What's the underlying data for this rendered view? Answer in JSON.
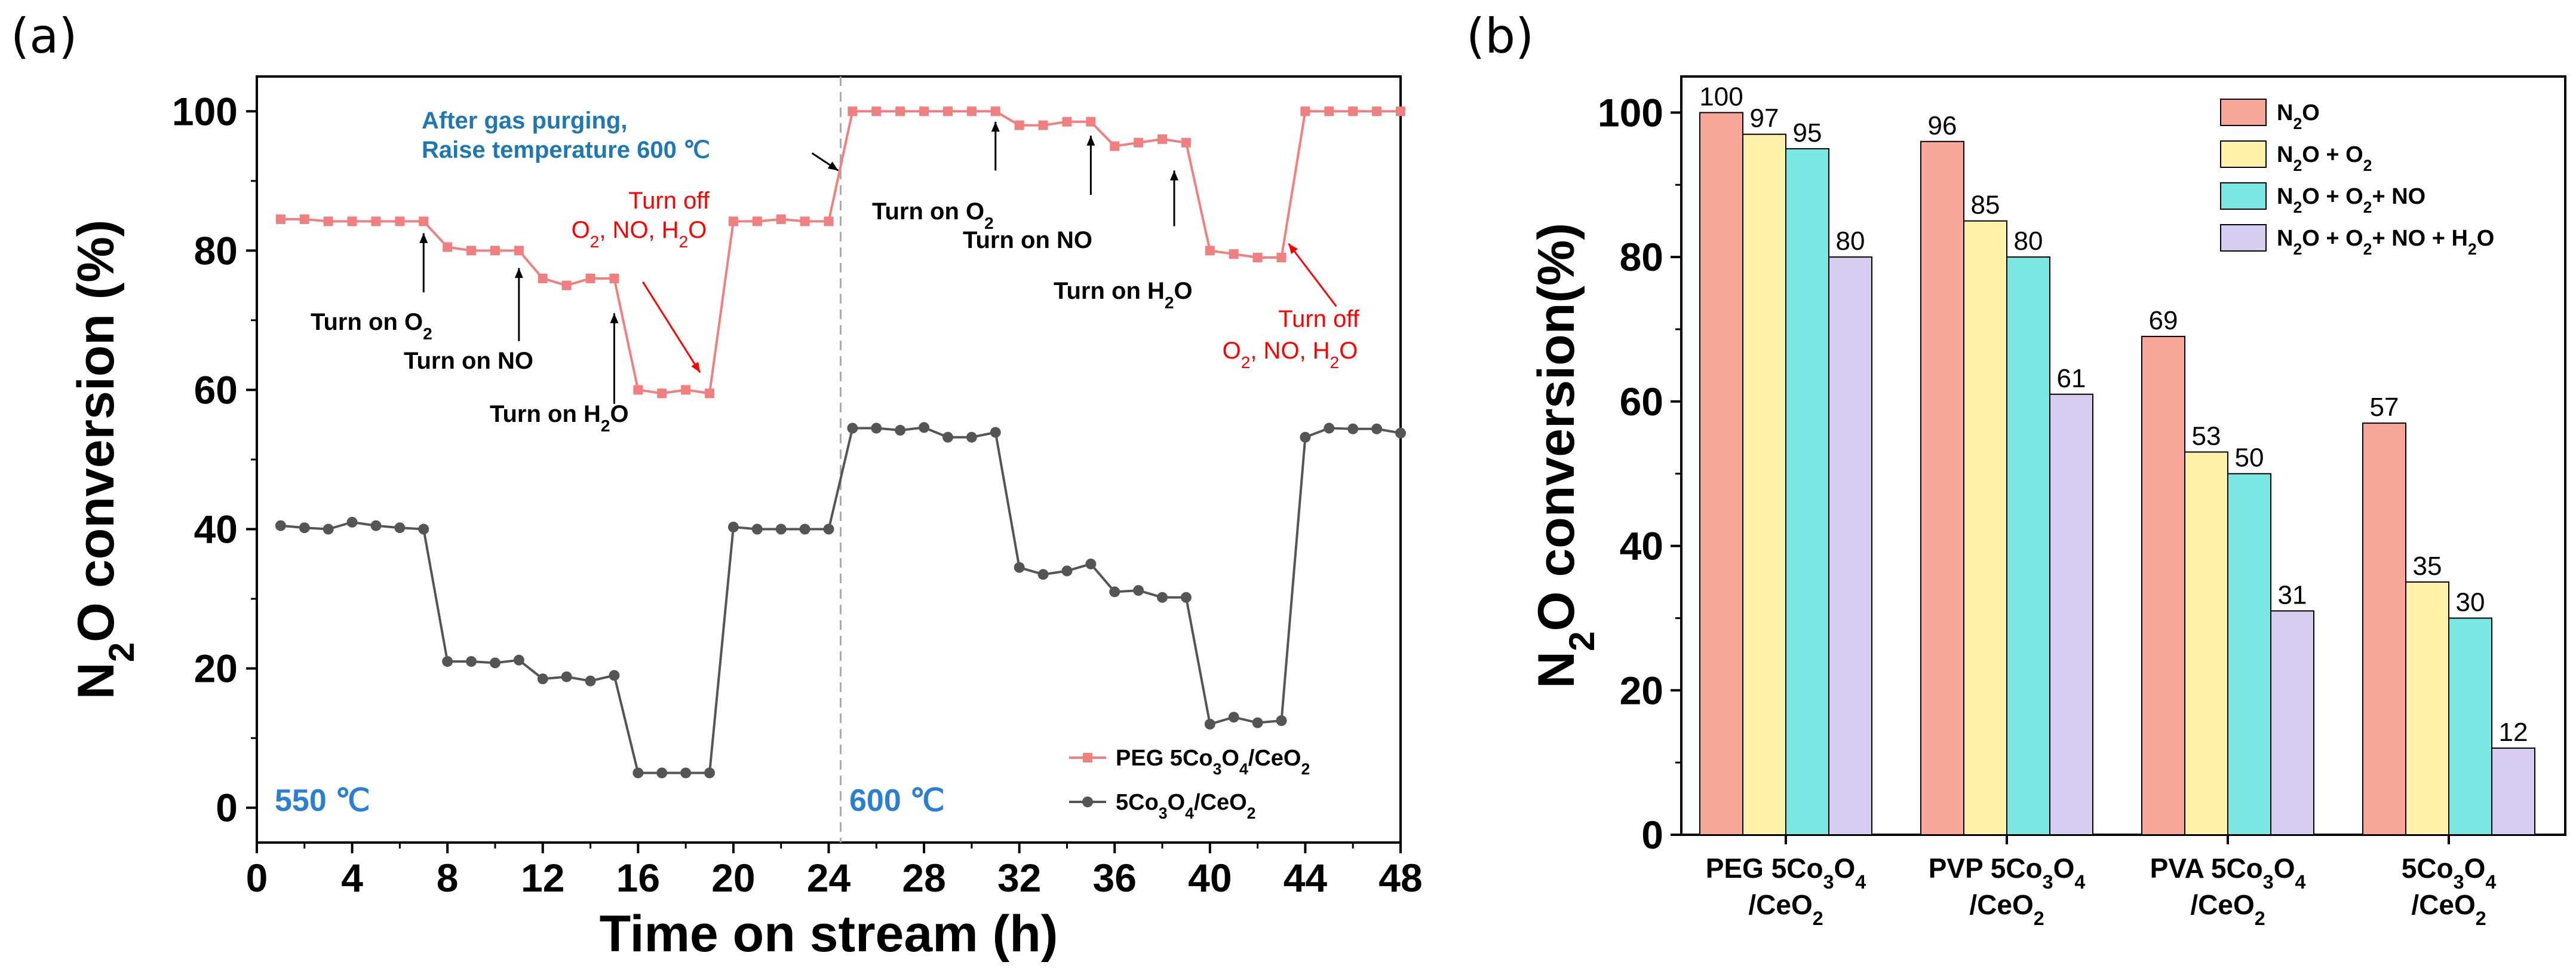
{
  "chart_data": [
    {
      "panel": "(a)",
      "type": "line",
      "xlabel": "Time on stream (h)",
      "ylabel": "N2O conversion (%)",
      "xlim": [
        0,
        48
      ],
      "ylim": [
        -5,
        105
      ],
      "x_ticks": [
        "0",
        "4",
        "8",
        "12",
        "16",
        "20",
        "24",
        "28",
        "32",
        "36",
        "40",
        "44",
        "48"
      ],
      "y_ticks": [
        "0",
        "20",
        "40",
        "60",
        "80",
        "100"
      ],
      "series": [
        {
          "name": "PEG 5Co3O4/CeO2",
          "color": "#f08080",
          "x": [
            1,
            2,
            3,
            4,
            5,
            6,
            7,
            8,
            9,
            10,
            11,
            12,
            13,
            14,
            15,
            16,
            17,
            18,
            19,
            20,
            21,
            22,
            23,
            24,
            25,
            26,
            27,
            28,
            29,
            30,
            31,
            32,
            33,
            34,
            35,
            36,
            37,
            38,
            39,
            40,
            41,
            42,
            43,
            44,
            45,
            46,
            47,
            48
          ],
          "y": [
            84.5,
            84.5,
            84.2,
            84.2,
            84.2,
            84.2,
            84.2,
            80.5,
            80,
            80,
            80,
            76,
            75,
            76,
            76,
            60,
            59.5,
            60,
            59.5,
            84.2,
            84.2,
            84.5,
            84.2,
            84.2,
            100,
            100,
            100,
            100,
            100,
            100,
            100,
            98,
            98,
            98.5,
            98.5,
            95,
            95.5,
            96,
            95.5,
            80,
            79.5,
            79,
            79,
            100,
            100,
            100,
            100,
            100
          ]
        },
        {
          "name": "5Co3O4/CeO2",
          "color": "#555555",
          "x": [
            1,
            2,
            3,
            4,
            5,
            6,
            7,
            8,
            9,
            10,
            11,
            12,
            13,
            14,
            15,
            16,
            17,
            18,
            19,
            20,
            21,
            22,
            23,
            24,
            25,
            26,
            27,
            28,
            29,
            30,
            31,
            32,
            33,
            34,
            35,
            36,
            37,
            38,
            39,
            40,
            41,
            42,
            43,
            44,
            45,
            46,
            47,
            48
          ],
          "y": [
            40.5,
            40.2,
            40,
            41,
            40.5,
            40.2,
            40,
            21,
            21,
            20.8,
            21.2,
            18.5,
            18.8,
            18.2,
            19,
            5,
            5,
            5,
            5,
            40.3,
            40,
            40,
            40,
            40,
            54.5,
            54.5,
            54.2,
            54.6,
            53.2,
            53.2,
            53.9,
            34.5,
            33.5,
            34,
            35,
            31,
            31.2,
            30.2,
            30.2,
            12,
            13,
            12.2,
            12.5,
            53.2,
            54.5,
            54.4,
            54.4,
            53.8
          ]
        }
      ],
      "legend": [
        "PEG 5Co3O4/CeO2",
        "5Co3O4/CeO2"
      ],
      "annotations": {
        "temp_left": "550 ℃",
        "temp_right": "600 ℃",
        "purge_line1": "After gas purging,",
        "purge_line2": "Raise temperature 600 ℃",
        "turn_on_o2": "Turn on O",
        "turn_on_no": "Turn on NO",
        "turn_on_h2o": "Turn on H",
        "turn_off": "Turn off",
        "turn_off_species": "O",
        "o2_sub": "2",
        "h2o_tail": "O",
        "species_rest": ", NO, H"
      }
    },
    {
      "panel": "(b)",
      "type": "bar",
      "ylabel": "N2O conversion(%)",
      "ylim": [
        0,
        105
      ],
      "y_ticks": [
        "0",
        "20",
        "40",
        "60",
        "80",
        "100"
      ],
      "categories": [
        {
          "line1": "PEG 5Co",
          "line2": "/CeO"
        },
        {
          "line1": "PVP 5Co",
          "line2": "/CeO"
        },
        {
          "line1": "PVA 5Co",
          "line2": "/CeO"
        },
        {
          "line1": "5Co",
          "line2": "/CeO"
        }
      ],
      "series": [
        {
          "name": "N2O",
          "color": "#f9a69b",
          "values": [
            100,
            96,
            69,
            57
          ]
        },
        {
          "name": "N2O + O2",
          "color": "#fff2a8",
          "values": [
            97,
            85,
            53,
            35
          ]
        },
        {
          "name": "N2O + O2+ NO",
          "color": "#7be7e2",
          "values": [
            95,
            80,
            50,
            30
          ]
        },
        {
          "name": "N2O + O2+ NO + H2O",
          "color": "#d7cdf0",
          "values": [
            80,
            61,
            31,
            12
          ]
        }
      ],
      "value_labels": [
        [
          "100",
          "96",
          "69",
          "57"
        ],
        [
          "97",
          "85",
          "53",
          "35"
        ],
        [
          "95",
          "80",
          "50",
          "30"
        ],
        [
          "80",
          "61",
          "31",
          "12"
        ]
      ]
    }
  ]
}
